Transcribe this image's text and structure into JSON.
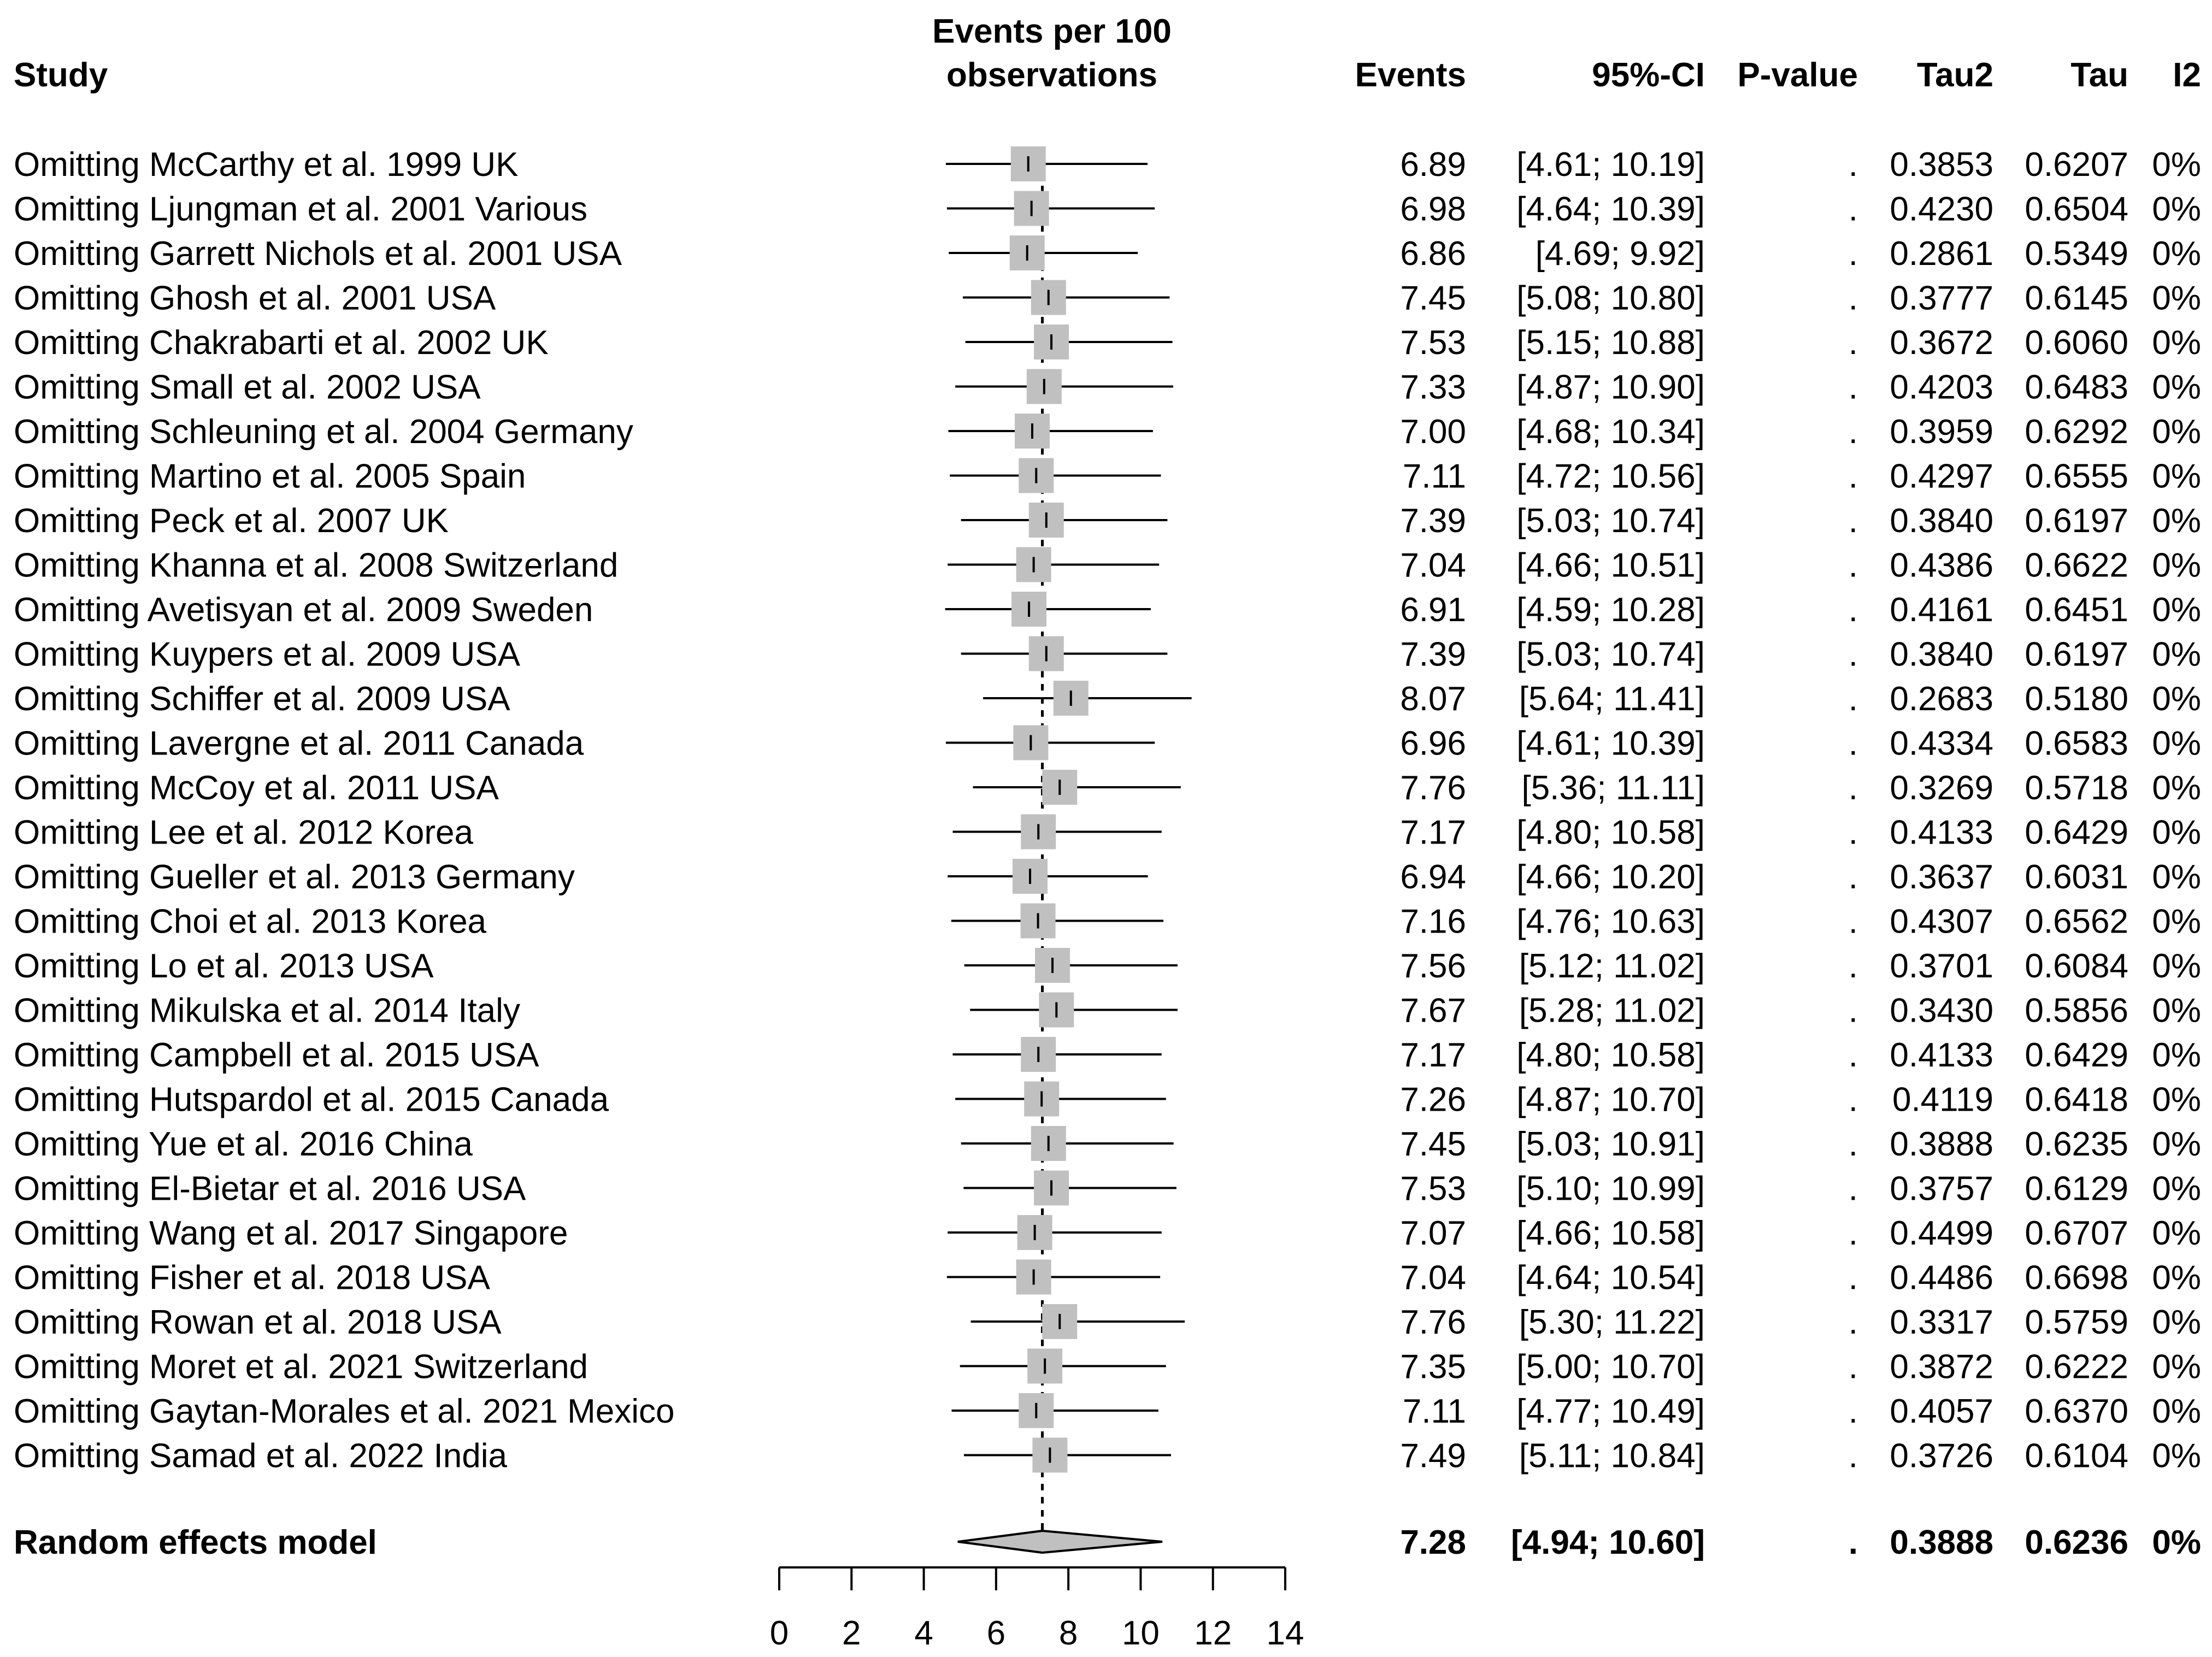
{
  "chart_data": {
    "type": "forest",
    "title": "",
    "columns": {
      "study": "Study",
      "plot": [
        "Events per 100",
        "observations"
      ],
      "events": "Events",
      "ci": "95%-CI",
      "pvalue": "P-value",
      "tau2": "Tau2",
      "tau": "Tau",
      "i2": "I2"
    },
    "xlim": [
      0,
      14
    ],
    "xticks": [
      "0",
      "2",
      "4",
      "6",
      "8",
      "10",
      "12",
      "14"
    ],
    "reference_line": 7.28,
    "rows": [
      {
        "study": "Omitting McCarthy et al. 1999 UK",
        "est": 6.89,
        "lo": 4.61,
        "hi": 10.19,
        "events": "6.89",
        "ci": "[4.61; 10.19]",
        "p": ".",
        "tau2": "0.3853",
        "tau": "0.6207",
        "i2": "0%"
      },
      {
        "study": "Omitting Ljungman et al. 2001 Various",
        "est": 6.98,
        "lo": 4.64,
        "hi": 10.39,
        "events": "6.98",
        "ci": "[4.64; 10.39]",
        "p": ".",
        "tau2": "0.4230",
        "tau": "0.6504",
        "i2": "0%"
      },
      {
        "study": "Omitting Garrett Nichols et al. 2001 USA",
        "est": 6.86,
        "lo": 4.69,
        "hi": 9.92,
        "events": "6.86",
        "ci": "[4.69;  9.92]",
        "p": ".",
        "tau2": "0.2861",
        "tau": "0.5349",
        "i2": "0%"
      },
      {
        "study": "Omitting Ghosh et al. 2001 USA",
        "est": 7.45,
        "lo": 5.08,
        "hi": 10.8,
        "events": "7.45",
        "ci": "[5.08; 10.80]",
        "p": ".",
        "tau2": "0.3777",
        "tau": "0.6145",
        "i2": "0%"
      },
      {
        "study": "Omitting Chakrabarti et al. 2002 UK",
        "est": 7.53,
        "lo": 5.15,
        "hi": 10.88,
        "events": "7.53",
        "ci": "[5.15; 10.88]",
        "p": ".",
        "tau2": "0.3672",
        "tau": "0.6060",
        "i2": "0%"
      },
      {
        "study": "Omitting Small et al. 2002 USA",
        "est": 7.33,
        "lo": 4.87,
        "hi": 10.9,
        "events": "7.33",
        "ci": "[4.87; 10.90]",
        "p": ".",
        "tau2": "0.4203",
        "tau": "0.6483",
        "i2": "0%"
      },
      {
        "study": "Omitting Schleuning et al. 2004 Germany",
        "est": 7.0,
        "lo": 4.68,
        "hi": 10.34,
        "events": "7.00",
        "ci": "[4.68; 10.34]",
        "p": ".",
        "tau2": "0.3959",
        "tau": "0.6292",
        "i2": "0%"
      },
      {
        "study": "Omitting Martino et al. 2005 Spain",
        "est": 7.11,
        "lo": 4.72,
        "hi": 10.56,
        "events": "7.11",
        "ci": "[4.72; 10.56]",
        "p": ".",
        "tau2": "0.4297",
        "tau": "0.6555",
        "i2": "0%"
      },
      {
        "study": "Omitting Peck et al. 2007 UK",
        "est": 7.39,
        "lo": 5.03,
        "hi": 10.74,
        "events": "7.39",
        "ci": "[5.03; 10.74]",
        "p": ".",
        "tau2": "0.3840",
        "tau": "0.6197",
        "i2": "0%"
      },
      {
        "study": "Omitting Khanna et al. 2008 Switzerland",
        "est": 7.04,
        "lo": 4.66,
        "hi": 10.51,
        "events": "7.04",
        "ci": "[4.66; 10.51]",
        "p": ".",
        "tau2": "0.4386",
        "tau": "0.6622",
        "i2": "0%"
      },
      {
        "study": "Omitting Avetisyan et al. 2009 Sweden",
        "est": 6.91,
        "lo": 4.59,
        "hi": 10.28,
        "events": "6.91",
        "ci": "[4.59; 10.28]",
        "p": ".",
        "tau2": "0.4161",
        "tau": "0.6451",
        "i2": "0%"
      },
      {
        "study": "Omitting Kuypers et al. 2009 USA",
        "est": 7.39,
        "lo": 5.03,
        "hi": 10.74,
        "events": "7.39",
        "ci": "[5.03; 10.74]",
        "p": ".",
        "tau2": "0.3840",
        "tau": "0.6197",
        "i2": "0%"
      },
      {
        "study": "Omitting Schiffer et al. 2009 USA",
        "est": 8.07,
        "lo": 5.64,
        "hi": 11.41,
        "events": "8.07",
        "ci": "[5.64; 11.41]",
        "p": ".",
        "tau2": "0.2683",
        "tau": "0.5180",
        "i2": "0%"
      },
      {
        "study": "Omitting Lavergne et al. 2011 Canada",
        "est": 6.96,
        "lo": 4.61,
        "hi": 10.39,
        "events": "6.96",
        "ci": "[4.61; 10.39]",
        "p": ".",
        "tau2": "0.4334",
        "tau": "0.6583",
        "i2": "0%"
      },
      {
        "study": "Omitting McCoy et al. 2011 USA",
        "est": 7.76,
        "lo": 5.36,
        "hi": 11.11,
        "events": "7.76",
        "ci": "[5.36; 11.11]",
        "p": ".",
        "tau2": "0.3269",
        "tau": "0.5718",
        "i2": "0%"
      },
      {
        "study": "Omitting Lee et al. 2012 Korea",
        "est": 7.17,
        "lo": 4.8,
        "hi": 10.58,
        "events": "7.17",
        "ci": "[4.80; 10.58]",
        "p": ".",
        "tau2": "0.4133",
        "tau": "0.6429",
        "i2": "0%"
      },
      {
        "study": "Omitting Gueller et al. 2013 Germany",
        "est": 6.94,
        "lo": 4.66,
        "hi": 10.2,
        "events": "6.94",
        "ci": "[4.66; 10.20]",
        "p": ".",
        "tau2": "0.3637",
        "tau": "0.6031",
        "i2": "0%"
      },
      {
        "study": "Omitting Choi et al. 2013 Korea",
        "est": 7.16,
        "lo": 4.76,
        "hi": 10.63,
        "events": "7.16",
        "ci": "[4.76; 10.63]",
        "p": ".",
        "tau2": "0.4307",
        "tau": "0.6562",
        "i2": "0%"
      },
      {
        "study": "Omitting Lo et al. 2013 USA",
        "est": 7.56,
        "lo": 5.12,
        "hi": 11.02,
        "events": "7.56",
        "ci": "[5.12; 11.02]",
        "p": ".",
        "tau2": "0.3701",
        "tau": "0.6084",
        "i2": "0%"
      },
      {
        "study": "Omitting Mikulska et al. 2014 Italy",
        "est": 7.67,
        "lo": 5.28,
        "hi": 11.02,
        "events": "7.67",
        "ci": "[5.28; 11.02]",
        "p": ".",
        "tau2": "0.3430",
        "tau": "0.5856",
        "i2": "0%"
      },
      {
        "study": "Omitting Campbell et al. 2015 USA",
        "est": 7.17,
        "lo": 4.8,
        "hi": 10.58,
        "events": "7.17",
        "ci": "[4.80; 10.58]",
        "p": ".",
        "tau2": "0.4133",
        "tau": "0.6429",
        "i2": "0%"
      },
      {
        "study": "Omitting Hutspardol et al. 2015 Canada",
        "est": 7.26,
        "lo": 4.87,
        "hi": 10.7,
        "events": "7.26",
        "ci": "[4.87; 10.70]",
        "p": ".",
        "tau2": "0.4119",
        "tau": "0.6418",
        "i2": "0%"
      },
      {
        "study": "Omitting Yue et al. 2016 China",
        "est": 7.45,
        "lo": 5.03,
        "hi": 10.91,
        "events": "7.45",
        "ci": "[5.03; 10.91]",
        "p": ".",
        "tau2": "0.3888",
        "tau": "0.6235",
        "i2": "0%"
      },
      {
        "study": "Omitting El-Bietar et al. 2016 USA",
        "est": 7.53,
        "lo": 5.1,
        "hi": 10.99,
        "events": "7.53",
        "ci": "[5.10; 10.99]",
        "p": ".",
        "tau2": "0.3757",
        "tau": "0.6129",
        "i2": "0%"
      },
      {
        "study": "Omitting Wang et al. 2017 Singapore",
        "est": 7.07,
        "lo": 4.66,
        "hi": 10.58,
        "events": "7.07",
        "ci": "[4.66; 10.58]",
        "p": ".",
        "tau2": "0.4499",
        "tau": "0.6707",
        "i2": "0%"
      },
      {
        "study": "Omitting Fisher et al. 2018 USA",
        "est": 7.04,
        "lo": 4.64,
        "hi": 10.54,
        "events": "7.04",
        "ci": "[4.64; 10.54]",
        "p": ".",
        "tau2": "0.4486",
        "tau": "0.6698",
        "i2": "0%"
      },
      {
        "study": "Omitting Rowan et al. 2018 USA",
        "est": 7.76,
        "lo": 5.3,
        "hi": 11.22,
        "events": "7.76",
        "ci": "[5.30; 11.22]",
        "p": ".",
        "tau2": "0.3317",
        "tau": "0.5759",
        "i2": "0%"
      },
      {
        "study": "Omitting Moret et al. 2021 Switzerland",
        "est": 7.35,
        "lo": 5.0,
        "hi": 10.7,
        "events": "7.35",
        "ci": "[5.00; 10.70]",
        "p": ".",
        "tau2": "0.3872",
        "tau": "0.6222",
        "i2": "0%"
      },
      {
        "study": "Omitting Gaytan-Morales et al. 2021 Mexico",
        "est": 7.11,
        "lo": 4.77,
        "hi": 10.49,
        "events": "7.11",
        "ci": "[4.77; 10.49]",
        "p": ".",
        "tau2": "0.4057",
        "tau": "0.6370",
        "i2": "0%"
      },
      {
        "study": "Omitting Samad et al. 2022 India",
        "est": 7.49,
        "lo": 5.11,
        "hi": 10.84,
        "events": "7.49",
        "ci": "[5.11; 10.84]",
        "p": ".",
        "tau2": "0.3726",
        "tau": "0.6104",
        "i2": "0%"
      }
    ],
    "summary": {
      "study": "Random effects model",
      "est": 7.28,
      "lo": 4.94,
      "hi": 10.6,
      "events": "7.28",
      "ci": "[4.94; 10.60]",
      "p": ".",
      "tau2": "0.3888",
      "tau": "0.6236",
      "i2": "0%"
    },
    "colors": {
      "box": "#c0c0c0",
      "line": "#000000",
      "diamond": "#c0c0c0"
    }
  }
}
